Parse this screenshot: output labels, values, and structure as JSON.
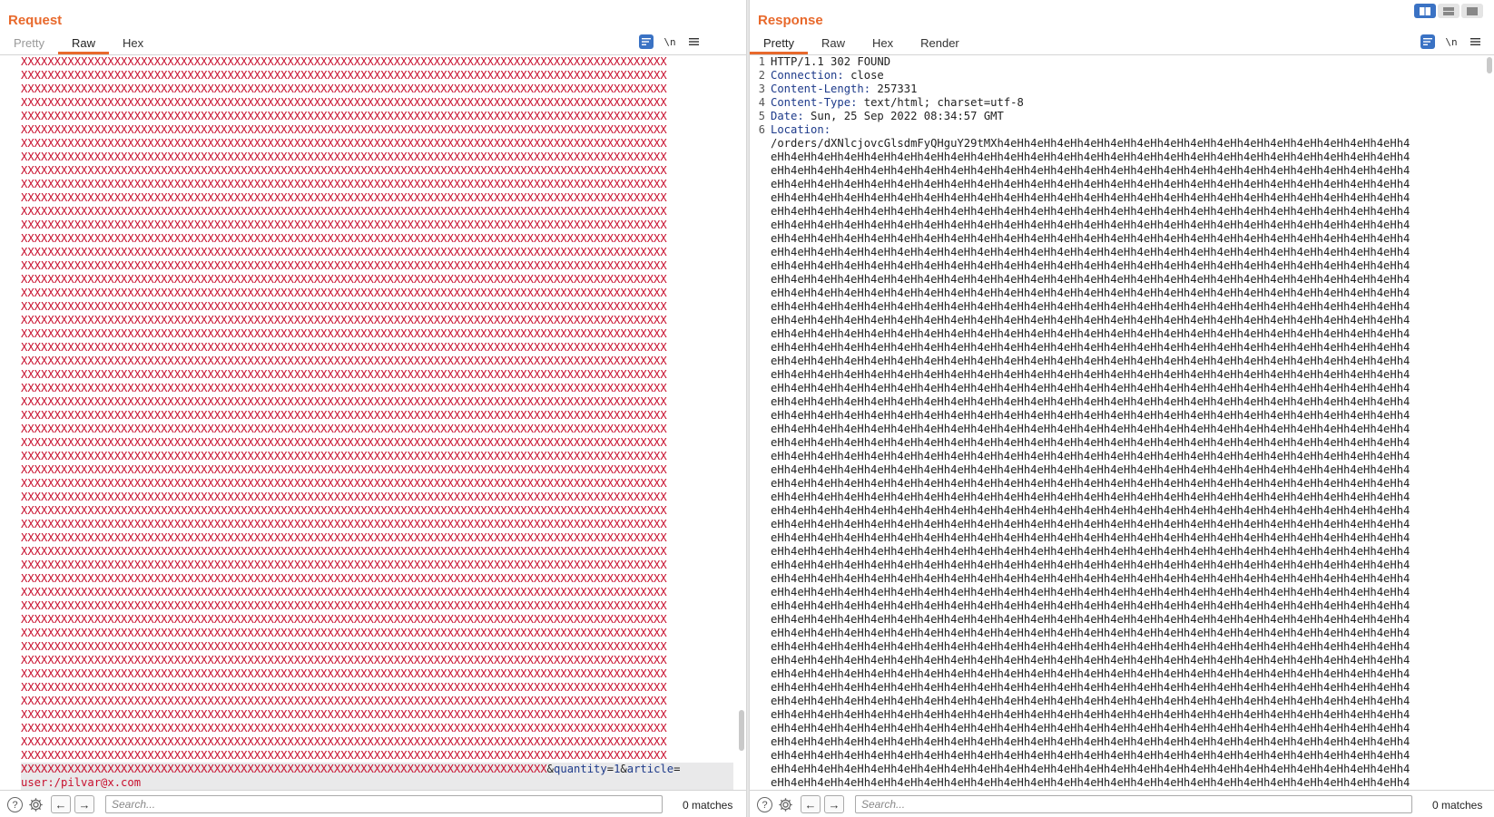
{
  "request": {
    "title": "Request",
    "tabs": [
      {
        "label": "Pretty",
        "state": "dim"
      },
      {
        "label": "Raw",
        "state": "active"
      },
      {
        "label": "Hex",
        "state": ""
      }
    ],
    "newline_toggle": "\\n",
    "red_line": "XXXXXXXXXXXXXXXXXXXXXXXXXXXXXXXXXXXXXXXXXXXXXXXXXXXXXXXXXXXXXXXXXXXXXXXXXXXXXXXXXXXXXXXXXXXXXXXXX",
    "red_line_count": 52,
    "tail_x": "XXXXXXXXXXXXXXXXXXXXXXXXXXXXXXXXXXXXXXXXXXXXXXXXXXXXXXXXXXXXXXXXXXXXXXXXXXXXXXX",
    "tail_params": [
      {
        "sep": "&",
        "key": "quantity",
        "eq": "=",
        "val": "1"
      },
      {
        "sep": "&",
        "key": "article",
        "eq": "=",
        "val": ""
      }
    ],
    "last_line": "user:/pilvar@x.com",
    "search_placeholder": "Search...",
    "matches": "0 matches"
  },
  "response": {
    "title": "Response",
    "tabs": [
      {
        "label": "Pretty",
        "state": "active"
      },
      {
        "label": "Raw",
        "state": ""
      },
      {
        "label": "Hex",
        "state": ""
      },
      {
        "label": "Render",
        "state": ""
      }
    ],
    "newline_toggle": "\\n",
    "status_line": "HTTP/1.1 302 FOUND",
    "headers": [
      {
        "name": "Connection",
        "value": "close"
      },
      {
        "name": "Content-Length",
        "value": "257331"
      },
      {
        "name": "Content-Type",
        "value": "text/html; charset=utf-8"
      },
      {
        "name": "Date",
        "value": "Sun, 25 Sep 2022 08:34:57 GMT"
      },
      {
        "name": "Location",
        "value": ""
      }
    ],
    "location_first": "/orders/dXNlcjovcGlsdmFyQHguY29tMXh4eHh4eHh4eHh4eHh4eHh4eHh4eHh4eHh4eHh4eHh4eHh4eHh4eHh4eHh4eHh4",
    "location_cont": "eHh4eHh4eHh4eHh4eHh4eHh4eHh4eHh4eHh4eHh4eHh4eHh4eHh4eHh4eHh4eHh4eHh4eHh4eHh4eHh4eHh4eHh4eHh4eHh4",
    "location_cont_count": 48,
    "line_numbers": [
      "1",
      "2",
      "3",
      "4",
      "5",
      "6"
    ],
    "search_placeholder": "Search...",
    "matches": "0 matches"
  },
  "layout_buttons": [
    "split-horizontal",
    "split-vertical",
    "single-pane"
  ]
}
